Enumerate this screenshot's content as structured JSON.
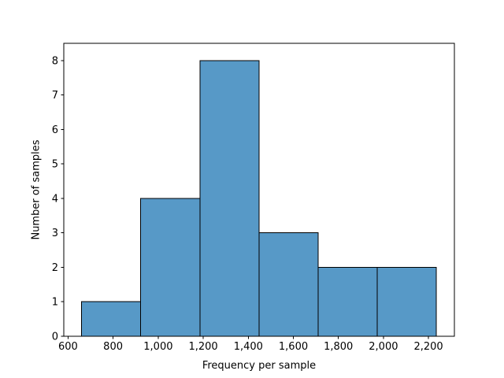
{
  "chart_data": {
    "type": "bar",
    "subtype": "histogram",
    "title": "",
    "xlabel": "Frequency per sample",
    "ylabel": "Number of samples",
    "bin_edges": [
      660,
      922.5,
      1185,
      1447.5,
      1710,
      1972.5,
      2235
    ],
    "counts": [
      1,
      4,
      8,
      3,
      2,
      2
    ],
    "xlim": [
      581,
      2315
    ],
    "ylim": [
      0,
      8.5
    ],
    "xticks": {
      "values": [
        600,
        800,
        1000,
        1200,
        1400,
        1600,
        1800,
        2000,
        2200
      ],
      "labels": [
        "600",
        "800",
        "1,000",
        "1,200",
        "1,400",
        "1,600",
        "1,800",
        "2,000",
        "2,200"
      ]
    },
    "yticks": {
      "values": [
        0,
        1,
        2,
        3,
        4,
        5,
        6,
        7,
        8
      ],
      "labels": [
        "0",
        "1",
        "2",
        "3",
        "4",
        "5",
        "6",
        "7",
        "8"
      ]
    },
    "grid": false,
    "legend": null,
    "colors": {
      "bar_fill": "#5799c7",
      "bar_edge": "#000000",
      "axis": "#000000",
      "background": "#ffffff",
      "text": "#000000"
    }
  }
}
